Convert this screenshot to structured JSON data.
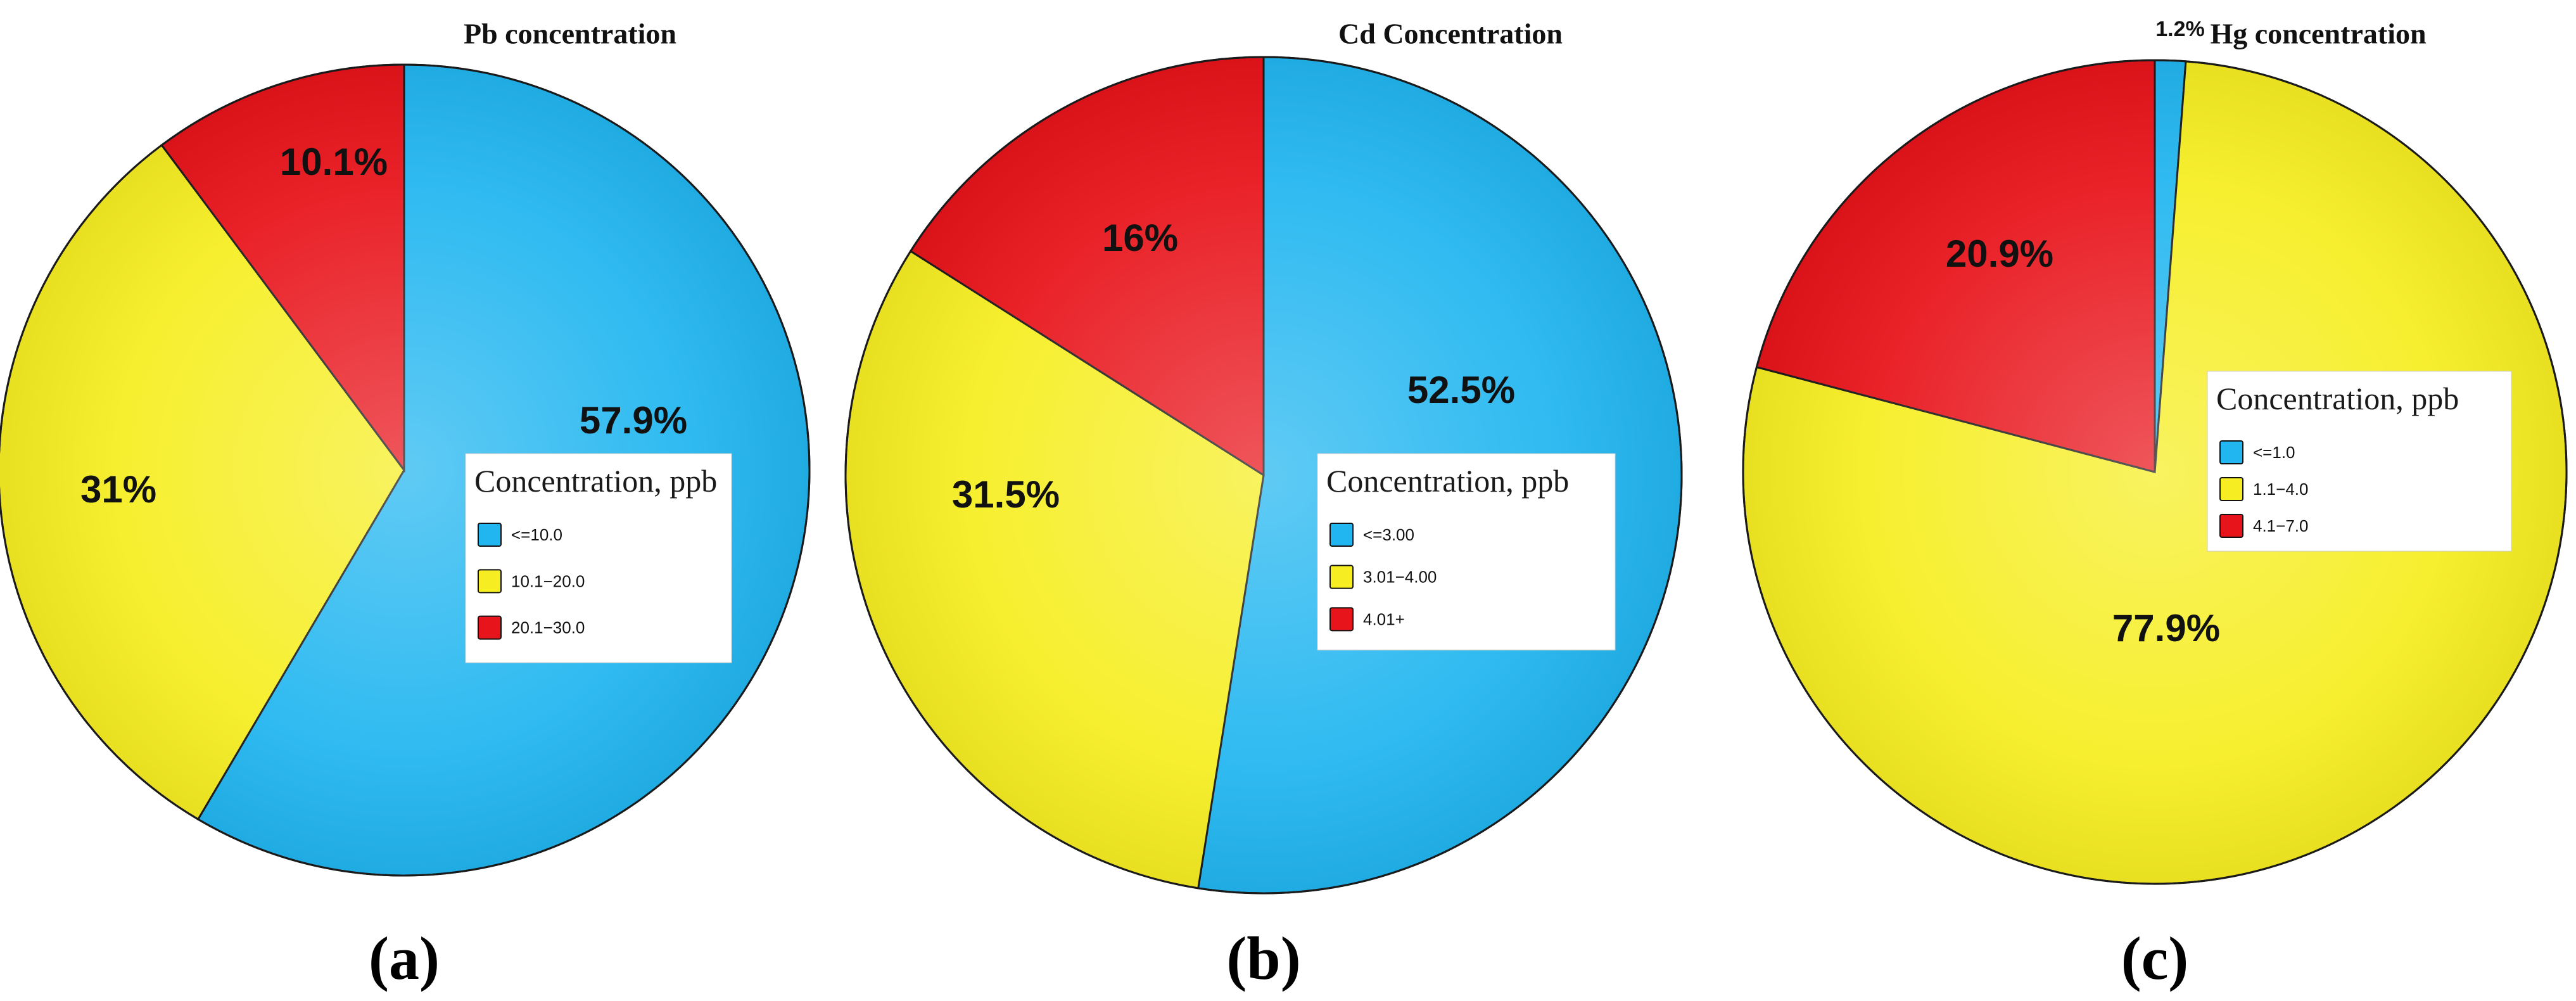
{
  "chart_data": [
    {
      "type": "pie",
      "title": "Pb concentration",
      "panel_label": "(a)",
      "legend_title": "Concentration, ppb",
      "categories": [
        "<=10.0",
        "10.1−20.0",
        "20.1−30.0"
      ],
      "values": [
        57.9,
        31.0,
        10.1
      ],
      "value_labels": [
        "57.9%",
        "31%",
        "10.1%"
      ],
      "colors": [
        "#22b6f0",
        "#f6ee22",
        "#e8141b"
      ]
    },
    {
      "type": "pie",
      "title": "Cd Concentration",
      "panel_label": "(b)",
      "legend_title": "Concentration, ppb",
      "categories": [
        "<=3.00",
        "3.01−4.00",
        "4.01+"
      ],
      "values": [
        52.5,
        31.5,
        16.0
      ],
      "value_labels": [
        "52.5%",
        "31.5%",
        "16%"
      ],
      "colors": [
        "#22b6f0",
        "#f6ee22",
        "#e8141b"
      ]
    },
    {
      "type": "pie",
      "title": "Hg concentration",
      "panel_label": "(c)",
      "legend_title": "Concentration, ppb",
      "categories": [
        "<=1.0",
        "1.1−4.0",
        "4.1−7.0"
      ],
      "values": [
        1.2,
        77.9,
        20.9
      ],
      "value_labels": [
        "1.2%",
        "77.9%",
        "20.9%"
      ],
      "colors": [
        "#22b6f0",
        "#f6ee22",
        "#e8141b"
      ]
    }
  ]
}
